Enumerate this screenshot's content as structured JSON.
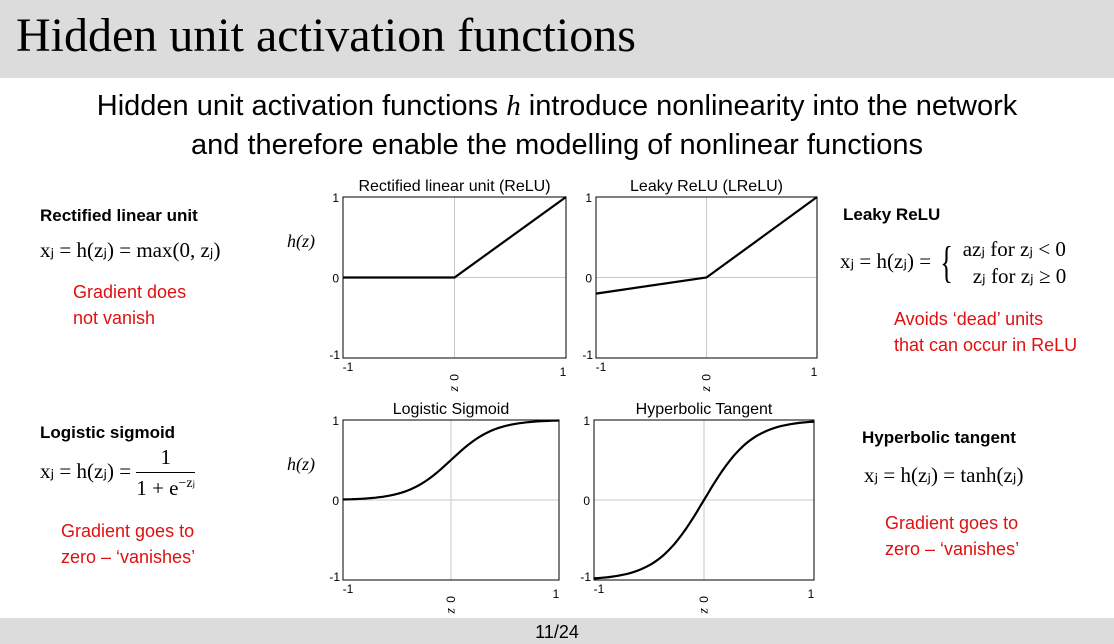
{
  "title": "Hidden unit activation functions",
  "subtitle": {
    "part1": "Hidden unit activation functions ",
    "var": "h",
    "part2": " introduce nonlinearity into the network",
    "line2": "and therefore enable the modelling of nonlinear functions"
  },
  "panels": {
    "relu": {
      "name": "Rectified linear unit",
      "equation": "xⱼ = h(zⱼ) = max(0, zⱼ)",
      "note": [
        "Gradient does",
        "not vanish"
      ]
    },
    "lrelu": {
      "name": "Leaky ReLU",
      "equation_lhs": "xⱼ = h(zⱼ) =",
      "case1": "azⱼ for zⱼ < 0",
      "case2": "zⱼ for zⱼ ≥ 0",
      "note": [
        "Avoids ‘dead’ units",
        "that can occur in ReLU"
      ]
    },
    "sigmoid": {
      "name": "Logistic sigmoid",
      "equation_lhs": "xⱼ = h(zⱼ) =",
      "numerator": "1",
      "denominator_base": "1 + e",
      "denominator_exp": "−zⱼ",
      "note": [
        "Gradient goes to",
        "zero – ‘vanishes’"
      ]
    },
    "tanh": {
      "name": "Hyperbolic tangent",
      "equation": "xⱼ = h(zⱼ) = tanh(zⱼ)",
      "note": [
        "Gradient goes to",
        "zero – ‘vanishes’"
      ]
    }
  },
  "chart_data": [
    {
      "type": "line",
      "title": "Rectified linear unit (ReLU)",
      "xlabel": "z",
      "ylabel": "h(z)",
      "xlim": [
        -1,
        1
      ],
      "ylim": [
        -1,
        1
      ],
      "xticks": [
        "-1",
        "0",
        "1"
      ],
      "yticks": [
        "-1",
        "0",
        "1"
      ],
      "grid": "axes at zero",
      "series": [
        {
          "x": [
            -1,
            0,
            1
          ],
          "y": [
            0,
            0,
            1
          ]
        }
      ]
    },
    {
      "type": "line",
      "title": "Leaky ReLU (LReLU)",
      "xlabel": "z",
      "ylabel": "",
      "xlim": [
        -1,
        1
      ],
      "ylim": [
        -1,
        1
      ],
      "xticks": [
        "-1",
        "0",
        "1"
      ],
      "yticks": [
        "-1",
        "0",
        "1"
      ],
      "grid": "axes at zero",
      "series": [
        {
          "x": [
            -1,
            0,
            1
          ],
          "y": [
            -0.2,
            0,
            1
          ]
        }
      ]
    },
    {
      "type": "line",
      "title": "Logistic Sigmoid",
      "xlabel": "z",
      "ylabel": "h(z)",
      "xlim": [
        -1,
        1
      ],
      "ylim": [
        -1,
        1
      ],
      "xticks": [
        "-1",
        "0",
        "1"
      ],
      "yticks": [
        "-1",
        "0",
        "1"
      ],
      "grid": "axes at zero",
      "series": [
        {
          "x": [
            -1,
            -0.75,
            -0.5,
            -0.25,
            0,
            0.25,
            0.5,
            0.75,
            1
          ],
          "y": [
            0.01,
            0.07,
            0.19,
            0.34,
            0.5,
            0.66,
            0.81,
            0.93,
            0.99
          ]
        }
      ]
    },
    {
      "type": "line",
      "title": "Hyperbolic Tangent",
      "xlabel": "z",
      "ylabel": "",
      "xlim": [
        -1,
        1
      ],
      "ylim": [
        -1,
        1
      ],
      "xticks": [
        "-1",
        "0",
        "1"
      ],
      "yticks": [
        "-1",
        "0",
        "1"
      ],
      "grid": "axes at zero",
      "series": [
        {
          "x": [
            -1,
            -0.75,
            -0.5,
            -0.25,
            0,
            0.25,
            0.5,
            0.75,
            1
          ],
          "y": [
            -0.98,
            -0.86,
            -0.64,
            -0.34,
            0,
            0.34,
            0.64,
            0.86,
            0.98
          ]
        }
      ]
    }
  ],
  "footer": {
    "page": "11/24"
  }
}
